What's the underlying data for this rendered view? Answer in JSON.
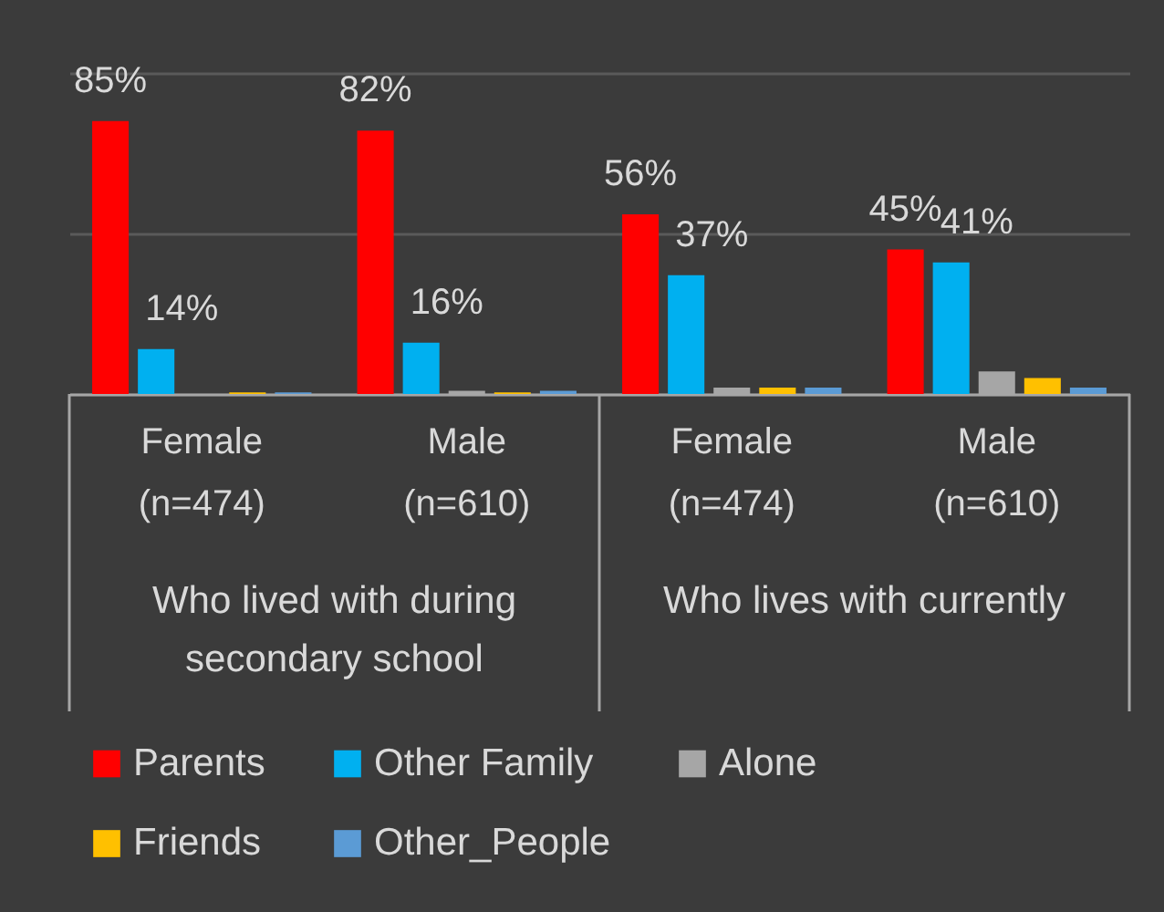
{
  "chart_data": {
    "type": "bar",
    "categories": [
      "Female (n=474)",
      "Male (n=610)",
      "Female (n=474)",
      "Male (n=610)"
    ],
    "series": [
      {
        "name": "Parents",
        "color": "#ff0000",
        "values": [
          85,
          82,
          56,
          45
        ],
        "value_labels": [
          "85%",
          "82%",
          "56%",
          "45%"
        ]
      },
      {
        "name": "Other Family",
        "color": "#00b0f0",
        "values": [
          14,
          16,
          37,
          41
        ],
        "value_labels": [
          "14%",
          "16%",
          "37%",
          "41%"
        ]
      },
      {
        "name": "Alone",
        "color": "#a6a6a6",
        "values": [
          0,
          1,
          2,
          7
        ]
      },
      {
        "name": "Friends",
        "color": "#ffc000",
        "values": [
          0.5,
          0.5,
          2,
          5
        ]
      },
      {
        "name": "Other_People",
        "color": "#5b9bd5",
        "values": [
          0.5,
          1,
          2,
          2
        ]
      }
    ],
    "annotations": [
      "Who lived with during secondary school",
      "Who lives with currently"
    ],
    "ylim": [
      0,
      100
    ],
    "yticks": [
      {
        "value": 0,
        "label": null
      },
      {
        "value": 50,
        "label": null
      },
      {
        "value": 100,
        "label": null
      }
    ],
    "tick_labels": "x",
    "grid": "y",
    "legend": "bottom"
  }
}
